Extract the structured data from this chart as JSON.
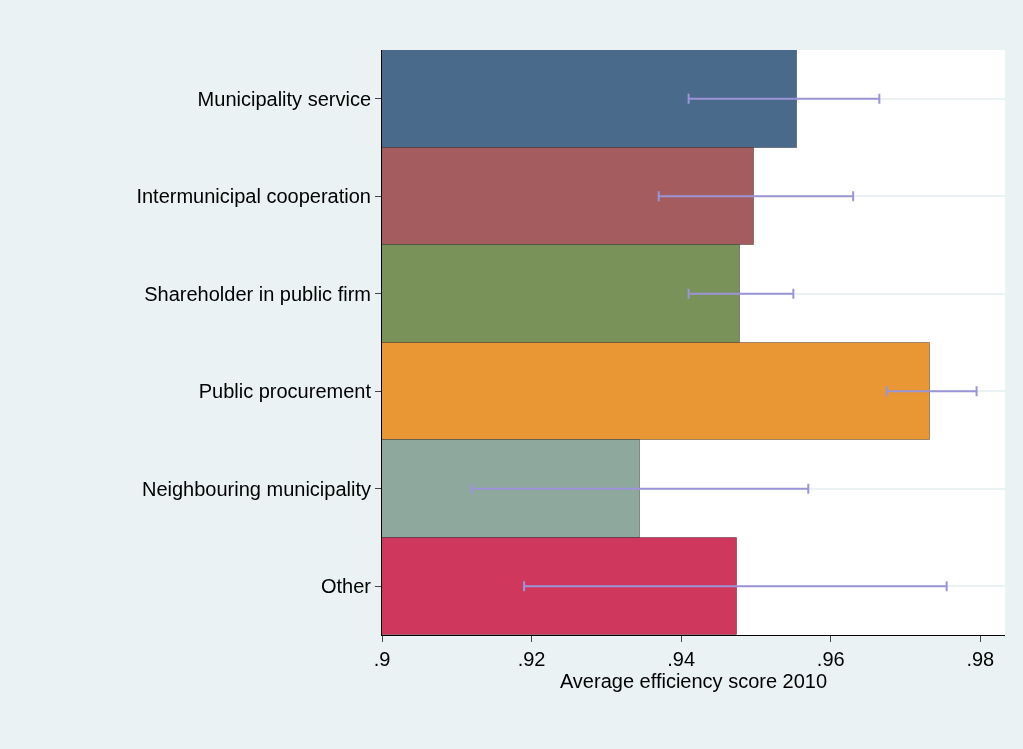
{
  "chart_data": {
    "type": "bar",
    "orientation": "horizontal",
    "xlabel": "Average efficiency score 2010",
    "categories": [
      "Municipality service",
      "Intermunicipal cooperation",
      "Shareholder in public firm",
      "Public procurement",
      "Neighbouring municipality",
      "Other"
    ],
    "values": [
      0.9555,
      0.9498,
      0.9478,
      0.9733,
      0.9345,
      0.9475
    ],
    "colors": [
      "#4a6a8c",
      "#a55c5f",
      "#78925a",
      "#e99735",
      "#8fa89e",
      "#cf385c"
    ],
    "errors": [
      [
        0.941,
        0.9665
      ],
      [
        0.937,
        0.963
      ],
      [
        0.941,
        0.955
      ],
      [
        0.9675,
        0.9795
      ],
      [
        0.912,
        0.957
      ],
      [
        0.919,
        0.9755
      ]
    ],
    "xlim": [
      0.9,
      0.9833
    ],
    "xticks": [
      {
        "value": 0.9,
        "label": ".9"
      },
      {
        "value": 0.92,
        "label": ".92"
      },
      {
        "value": 0.94,
        "label": ".94"
      },
      {
        "value": 0.96,
        "label": ".96"
      },
      {
        "value": 0.98,
        "label": ".98"
      }
    ],
    "grid": "y",
    "legend": false
  }
}
